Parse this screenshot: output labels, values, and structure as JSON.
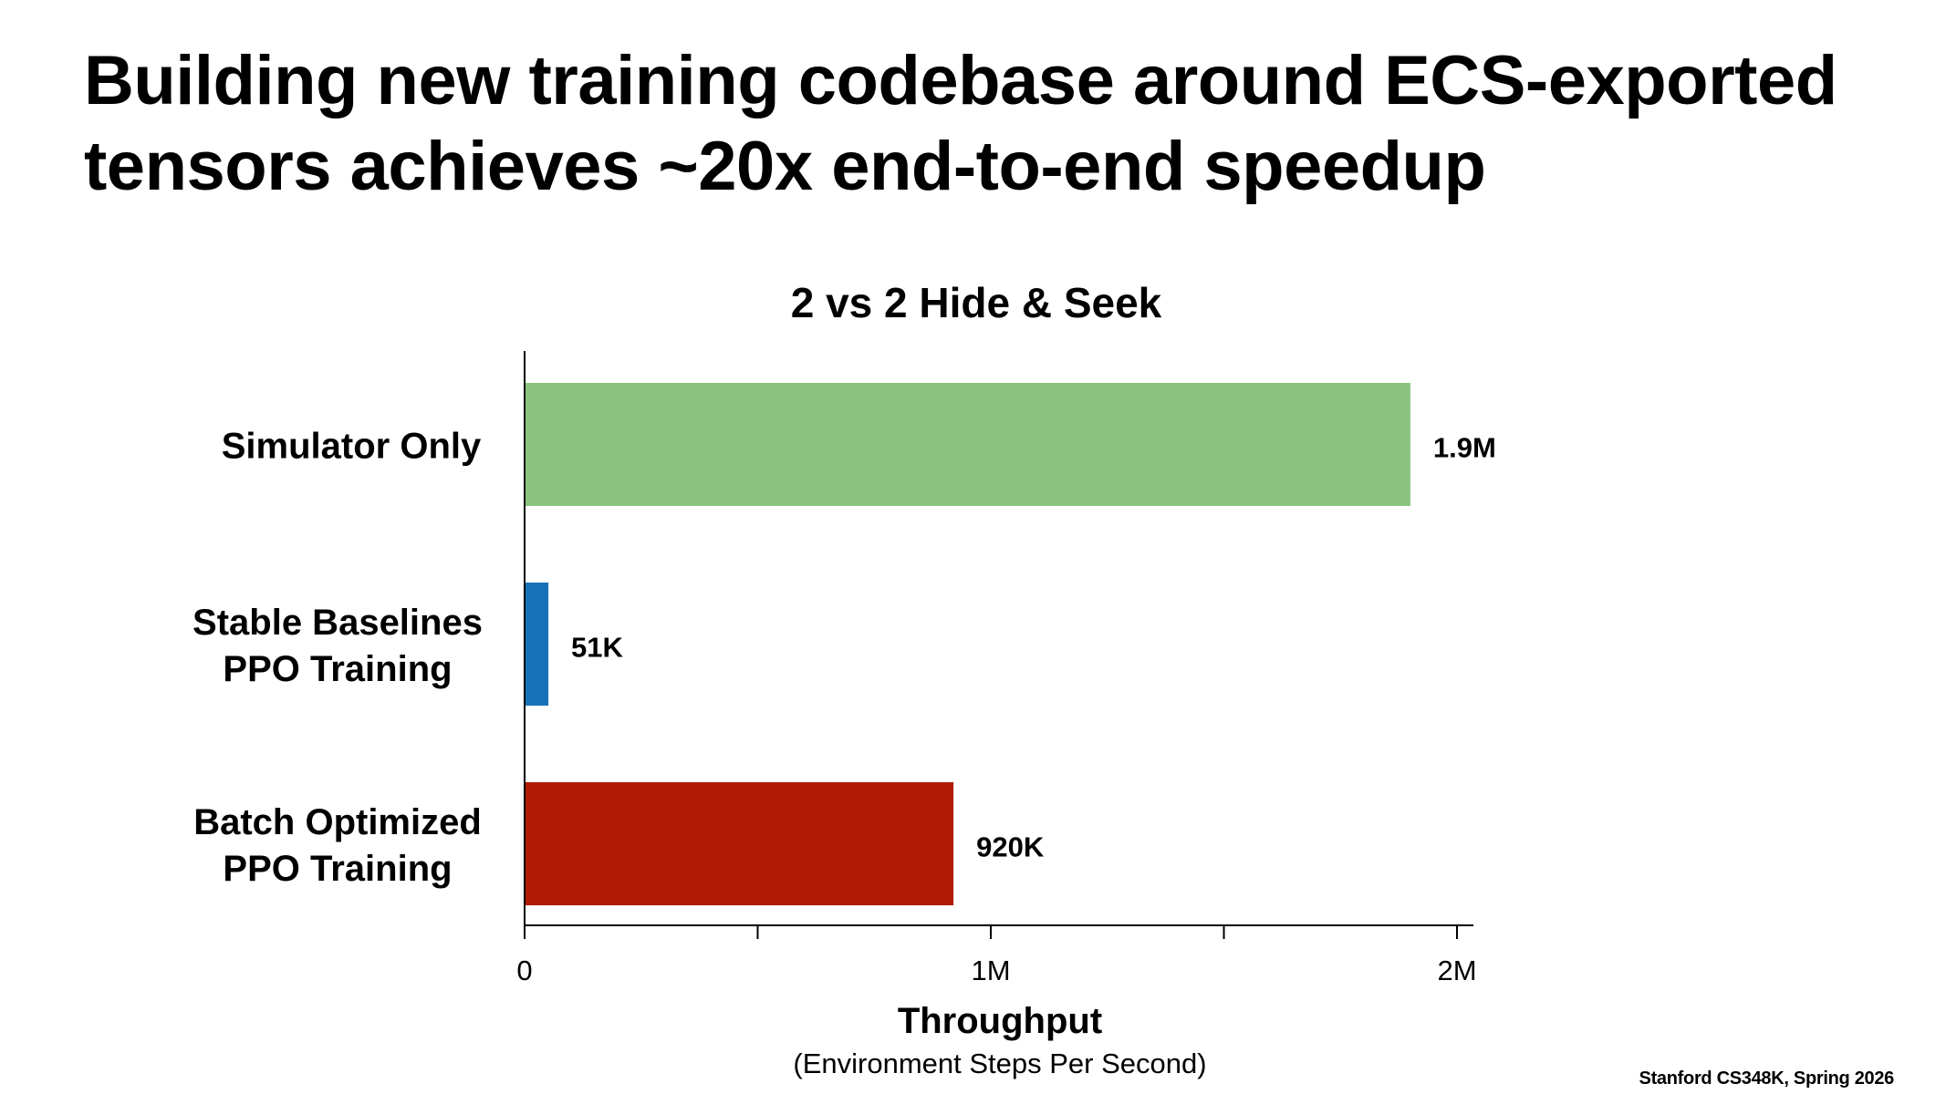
{
  "slide": {
    "title_lines": [
      "Building new training codebase around ECS-exported",
      "tensors achieves ~20x end-to-end speedup"
    ],
    "footer": "Stanford CS348K, Spring 2026"
  },
  "chart_data": {
    "type": "bar",
    "orientation": "horizontal",
    "title": "2 vs 2 Hide & Seek",
    "categories": [
      [
        "Simulator Only"
      ],
      [
        "Stable Baselines",
        "PPO Training"
      ],
      [
        "Batch Optimized",
        "PPO Training"
      ]
    ],
    "values": [
      1900000,
      51000,
      920000
    ],
    "value_labels": [
      "1.9M",
      "51K",
      "920K"
    ],
    "colors": [
      "#8ac37f",
      "#1872b7",
      "#b01b05"
    ],
    "xlabel": "Throughput",
    "xlabel_sub": "(Environment Steps Per Second)",
    "xlim": [
      0,
      2000000
    ],
    "xticks": [
      0,
      500000,
      1000000,
      1500000,
      2000000
    ],
    "xtick_labels": [
      "0",
      "",
      "1M",
      "",
      "2M"
    ],
    "grid": false,
    "legend": "none"
  }
}
